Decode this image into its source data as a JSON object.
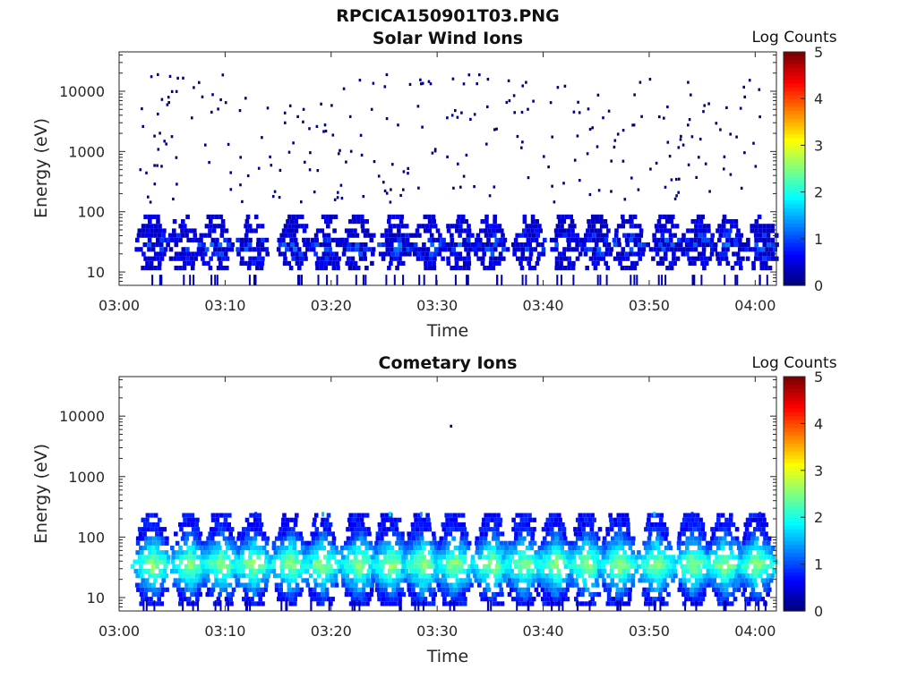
{
  "figure_title": "RPCICA150901T03.PNG",
  "chart_data": [
    {
      "type": "heatmap",
      "title": "Solar Wind Ions",
      "xlabel": "Time",
      "ylabel": "Energy (eV)",
      "y_scale": "log",
      "x_ticks": [
        "03:00",
        "03:10",
        "03:20",
        "03:30",
        "03:40",
        "03:50",
        "04:00"
      ],
      "y_ticks": [
        "10",
        "100",
        "1000",
        "10000"
      ],
      "xlim_minutes": [
        0,
        62
      ],
      "ylim_eV": [
        6,
        45000
      ],
      "colorbar": {
        "title": "Log Counts",
        "range": [
          0,
          5
        ],
        "ticks": [
          "0",
          "1",
          "2",
          "3",
          "4",
          "5"
        ],
        "colormap": "jet"
      },
      "bursts_minute": [
        3,
        6,
        9,
        12.5,
        16.5,
        19.5,
        22.5,
        26,
        29,
        32,
        35,
        38.5,
        42,
        45,
        48,
        51.5,
        54.5,
        57.5,
        60.5
      ],
      "band_eV": [
        12,
        90
      ],
      "band_log_counts": [
        0.3,
        1.0
      ],
      "scatter_eV": [
        150,
        20000
      ],
      "scatter_log_counts": 0.0
    },
    {
      "type": "heatmap",
      "title": "Cometary Ions",
      "xlabel": "Time",
      "ylabel": "Energy (eV)",
      "y_scale": "log",
      "x_ticks": [
        "03:00",
        "03:10",
        "03:20",
        "03:30",
        "03:40",
        "03:50",
        "04:00"
      ],
      "y_ticks": [
        "10",
        "100",
        "1000",
        "10000"
      ],
      "xlim_minutes": [
        0,
        62
      ],
      "ylim_eV": [
        6,
        45000
      ],
      "colorbar": {
        "title": "Log Counts",
        "range": [
          0,
          5
        ],
        "ticks": [
          "0",
          "1",
          "2",
          "3",
          "4",
          "5"
        ],
        "colormap": "jet"
      },
      "bursts_minute": [
        3,
        6.5,
        9.5,
        12.5,
        16,
        19,
        22.5,
        25.5,
        28.5,
        31.5,
        35,
        38,
        41,
        44,
        47,
        50.5,
        54,
        57,
        60
      ],
      "band_eV": [
        8,
        250
      ],
      "band_log_counts": [
        0.5,
        2.5
      ],
      "isolated_points": [
        {
          "minute": 31.2,
          "eV": 7200
        }
      ],
      "scatter_log_counts": 0.0
    }
  ]
}
